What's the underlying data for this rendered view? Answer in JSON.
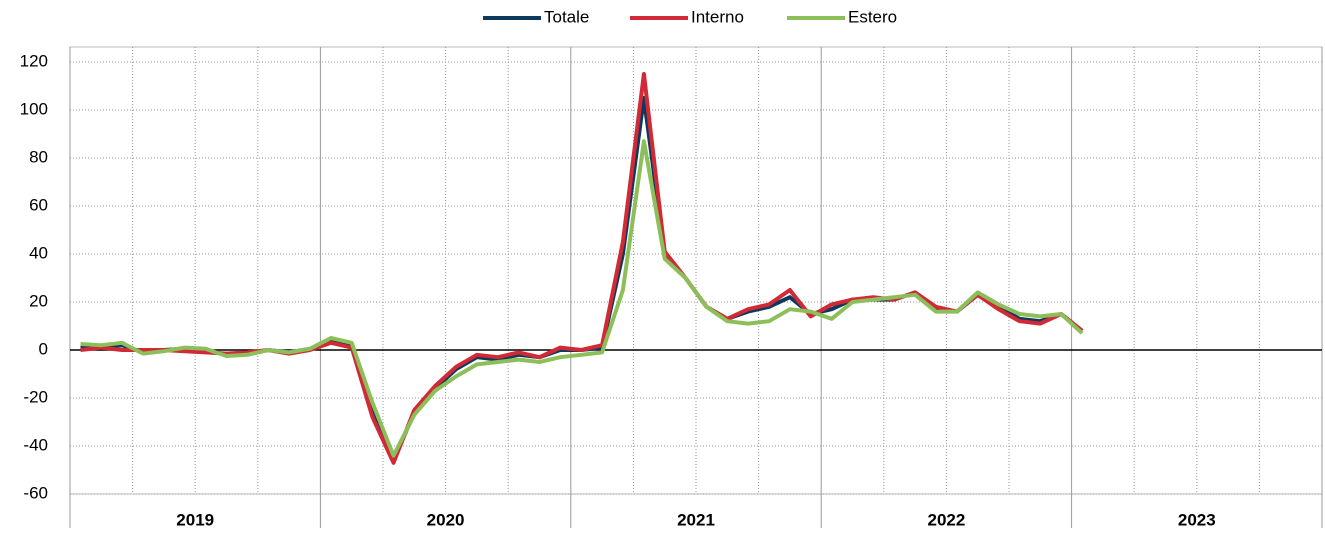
{
  "chart_data": {
    "type": "line",
    "x": [
      2019.042,
      2019.125,
      2019.208,
      2019.292,
      2019.375,
      2019.458,
      2019.542,
      2019.625,
      2019.708,
      2019.792,
      2019.875,
      2019.958,
      2020.042,
      2020.125,
      2020.208,
      2020.292,
      2020.375,
      2020.458,
      2020.542,
      2020.625,
      2020.708,
      2020.792,
      2020.875,
      2020.958,
      2021.042,
      2021.125,
      2021.208,
      2021.292,
      2021.375,
      2021.458,
      2021.542,
      2021.625,
      2021.708,
      2021.792,
      2021.875,
      2021.958,
      2022.042,
      2022.125,
      2022.208,
      2022.292,
      2022.375,
      2022.458,
      2022.542,
      2022.625,
      2022.708,
      2022.792,
      2022.875,
      2022.958,
      2023.042
    ],
    "series": [
      {
        "name": "Totale",
        "color": "#0d3a5c",
        "values": [
          1,
          1.5,
          2,
          -1,
          0,
          0.5,
          0,
          -2,
          -1.5,
          0,
          -1,
          0.5,
          4,
          2,
          -25,
          -46,
          -26,
          -16,
          -8,
          -3,
          -4,
          -2,
          -3,
          0,
          0,
          1,
          40,
          105,
          40,
          30,
          18,
          13,
          16,
          18,
          22,
          15,
          17,
          21,
          21,
          21,
          24,
          17,
          16,
          23,
          18,
          13,
          12,
          15,
          8
        ]
      },
      {
        "name": "Interno",
        "color": "#d12a36",
        "values": [
          0,
          1,
          0,
          0,
          0,
          -0.5,
          -1,
          -1.5,
          -1,
          0,
          -1.5,
          0,
          3,
          1,
          -28,
          -47,
          -25,
          -15,
          -7,
          -2,
          -3,
          -1,
          -3,
          1,
          0,
          2,
          45,
          115,
          41,
          30,
          18,
          13,
          17,
          19,
          25,
          14,
          19,
          21,
          22,
          21,
          24,
          18,
          16,
          23,
          17,
          12,
          11,
          15,
          8
        ]
      },
      {
        "name": "Estero",
        "color": "#8cbf5a",
        "values": [
          2.5,
          2,
          3,
          -1.5,
          -0.5,
          1,
          0.5,
          -2.5,
          -2,
          0,
          -1,
          0.5,
          5,
          3,
          -22,
          -44,
          -27,
          -17,
          -11,
          -6,
          -5,
          -4,
          -5,
          -3,
          -2,
          -1,
          25,
          87,
          38,
          30,
          18,
          12,
          11,
          12,
          17,
          16,
          13,
          20,
          21,
          22,
          23,
          16,
          16,
          24,
          19,
          15,
          14,
          15,
          7
        ]
      }
    ],
    "xlim": [
      2019,
      2024
    ],
    "xticks": [
      {
        "value": 2019.5,
        "label": "2019"
      },
      {
        "value": 2020.5,
        "label": "2020"
      },
      {
        "value": 2021.5,
        "label": "2021"
      },
      {
        "value": 2022.5,
        "label": "2022"
      },
      {
        "value": 2023.5,
        "label": "2023"
      }
    ],
    "xgrid": [
      2019.25,
      2019.5,
      2019.75,
      2020.25,
      2020.5,
      2020.75,
      2021.25,
      2021.5,
      2021.75,
      2022.25,
      2022.5,
      2022.75,
      2023.25,
      2023.5,
      2023.75
    ],
    "xbounds": [
      2019,
      2020,
      2021,
      2022,
      2023,
      2024
    ],
    "ylim": [
      -60,
      120
    ],
    "yticks": [
      -60,
      -40,
      -20,
      0,
      20,
      40,
      60,
      80,
      100,
      120
    ],
    "grid": true
  }
}
